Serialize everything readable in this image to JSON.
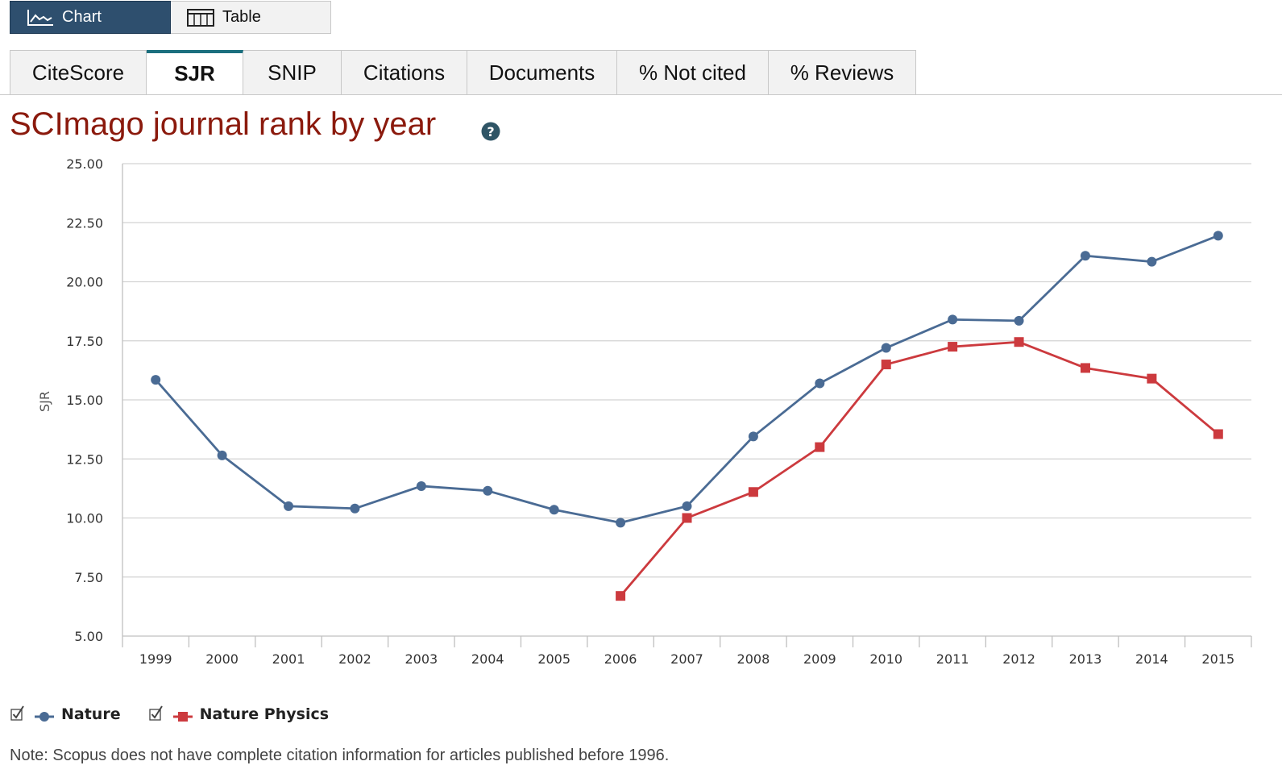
{
  "view_toggle": {
    "chart_label": "Chart",
    "table_label": "Table"
  },
  "tabs": [
    {
      "label": "CiteScore",
      "active": false
    },
    {
      "label": "SJR",
      "active": true
    },
    {
      "label": "SNIP",
      "active": false
    },
    {
      "label": "Citations",
      "active": false
    },
    {
      "label": "Documents",
      "active": false
    },
    {
      "label": "% Not cited",
      "active": false
    },
    {
      "label": "% Reviews",
      "active": false
    }
  ],
  "title": "SCImago journal rank by year",
  "note": "Note: Scopus does not have complete citation information for articles published before 1996.",
  "colors": {
    "accent_tab": "#1b6f7e",
    "title": "#8b1a0d",
    "nature": "#4a6b94",
    "nature_physics": "#cc3a3e"
  },
  "chart_data": {
    "type": "line",
    "title": "SCImago journal rank by year",
    "xlabel": "",
    "ylabel": "SJR",
    "categories": [
      "1999",
      "2000",
      "2001",
      "2002",
      "2003",
      "2004",
      "2005",
      "2006",
      "2007",
      "2008",
      "2009",
      "2010",
      "2011",
      "2012",
      "2013",
      "2014",
      "2015"
    ],
    "ylim": [
      5,
      25
    ],
    "yticks": [
      "5.00",
      "7.50",
      "10.00",
      "12.50",
      "15.00",
      "17.50",
      "20.00",
      "22.50",
      "25.00"
    ],
    "grid": true,
    "legend_position": "bottom-left",
    "series": [
      {
        "name": "Nature",
        "marker": "circle",
        "color": "#4a6b94",
        "values": [
          15.85,
          12.65,
          10.5,
          10.4,
          11.35,
          11.15,
          10.35,
          9.8,
          10.5,
          13.45,
          15.7,
          17.2,
          18.4,
          18.35,
          21.1,
          20.85,
          21.95
        ]
      },
      {
        "name": "Nature Physics",
        "marker": "square",
        "color": "#cc3a3e",
        "values": [
          null,
          null,
          null,
          null,
          null,
          null,
          null,
          6.7,
          10.0,
          11.1,
          13.0,
          16.5,
          17.25,
          17.45,
          16.35,
          15.9,
          13.55
        ]
      }
    ]
  }
}
